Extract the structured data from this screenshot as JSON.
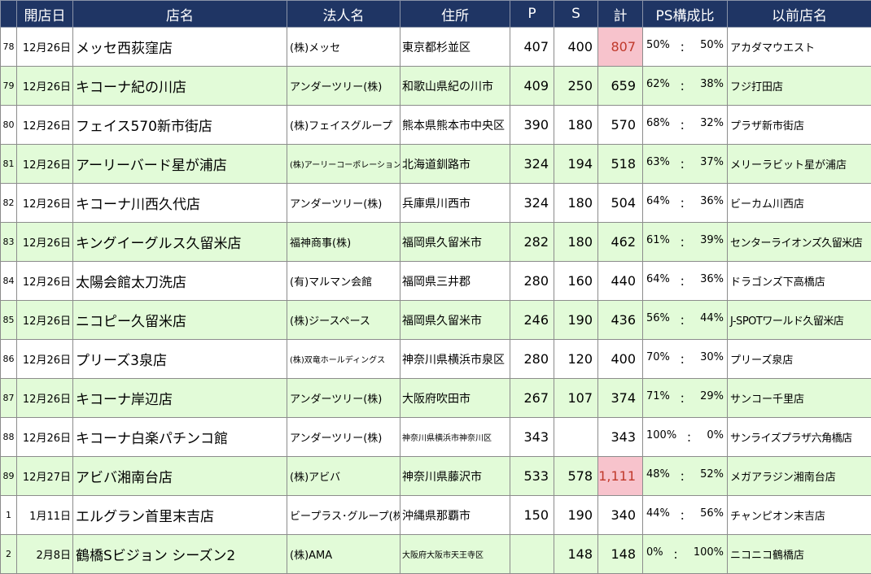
{
  "headers": {
    "no": "",
    "date": "開店日",
    "store": "店名",
    "corp": "法人名",
    "addr": "住所",
    "p": "P",
    "s": "S",
    "total": "計",
    "ratio": "PS構成比",
    "prev": "以前店名"
  },
  "rows": [
    {
      "no": "78",
      "date": "12月26日",
      "store": "メッセ西荻窪店",
      "corp": "(株)メッセ",
      "addr": "東京都杉並区",
      "p": "407",
      "s": "400",
      "total": "807",
      "ratio_p": "50%",
      "sep": "：",
      "ratio_s": "50%",
      "prev": "アカダマウエスト",
      "highlight": true
    },
    {
      "no": "79",
      "date": "12月26日",
      "store": "キコーナ紀の川店",
      "corp": "アンダーツリー(株)",
      "addr": "和歌山県紀の川市",
      "p": "409",
      "s": "250",
      "total": "659",
      "ratio_p": "62%",
      "sep": "：",
      "ratio_s": "38%",
      "prev": "フジ打田店",
      "highlight": false
    },
    {
      "no": "80",
      "date": "12月26日",
      "store": "フェイス570新市街店",
      "corp": "(株)フェイスグループ",
      "addr": "熊本県熊本市中央区",
      "p": "390",
      "s": "180",
      "total": "570",
      "ratio_p": "68%",
      "sep": "：",
      "ratio_s": "32%",
      "prev": "プラザ新市街店",
      "highlight": false
    },
    {
      "no": "81",
      "date": "12月26日",
      "store": "アーリーバード星が浦店",
      "corp": "(株)アーリーコーポレーション",
      "addr": "北海道釧路市",
      "p": "324",
      "s": "194",
      "total": "518",
      "ratio_p": "63%",
      "sep": "：",
      "ratio_s": "37%",
      "prev": "メリーラビット星が浦店",
      "highlight": false
    },
    {
      "no": "82",
      "date": "12月26日",
      "store": "キコーナ川西久代店",
      "corp": "アンダーツリー(株)",
      "addr": "兵庫県川西市",
      "p": "324",
      "s": "180",
      "total": "504",
      "ratio_p": "64%",
      "sep": "：",
      "ratio_s": "36%",
      "prev": "ビーカム川西店",
      "highlight": false
    },
    {
      "no": "83",
      "date": "12月26日",
      "store": "キングイーグルス久留米店",
      "corp": "福神商事(株)",
      "addr": "福岡県久留米市",
      "p": "282",
      "s": "180",
      "total": "462",
      "ratio_p": "61%",
      "sep": "：",
      "ratio_s": "39%",
      "prev": "センターライオンズ久留米店",
      "highlight": false
    },
    {
      "no": "84",
      "date": "12月26日",
      "store": "太陽会館太刀洗店",
      "corp": "(有)マルマン会館",
      "addr": "福岡県三井郡",
      "p": "280",
      "s": "160",
      "total": "440",
      "ratio_p": "64%",
      "sep": "：",
      "ratio_s": "36%",
      "prev": "ドラゴンズ下高橋店",
      "highlight": false
    },
    {
      "no": "85",
      "date": "12月26日",
      "store": "ニコピー久留米店",
      "corp": "(株)ジースペース",
      "addr": "福岡県久留米市",
      "p": "246",
      "s": "190",
      "total": "436",
      "ratio_p": "56%",
      "sep": "：",
      "ratio_s": "44%",
      "prev": "J-SPOTワールド久留米店",
      "highlight": false
    },
    {
      "no": "86",
      "date": "12月26日",
      "store": "プリーズ3泉店",
      "corp": "(株)双竜ホールディングス",
      "addr": "神奈川県横浜市泉区",
      "p": "280",
      "s": "120",
      "total": "400",
      "ratio_p": "70%",
      "sep": "：",
      "ratio_s": "30%",
      "prev": "プリーズ泉店",
      "highlight": false
    },
    {
      "no": "87",
      "date": "12月26日",
      "store": "キコーナ岸辺店",
      "corp": "アンダーツリー(株)",
      "addr": "大阪府吹田市",
      "p": "267",
      "s": "107",
      "total": "374",
      "ratio_p": "71%",
      "sep": "：",
      "ratio_s": "29%",
      "prev": "サンコー千里店",
      "highlight": false
    },
    {
      "no": "88",
      "date": "12月26日",
      "store": "キコーナ白楽パチンコ館",
      "corp": "アンダーツリー(株)",
      "addr": "神奈川県横浜市神奈川区",
      "p": "343",
      "s": "",
      "total": "343",
      "ratio_p": "100%",
      "sep": "：",
      "ratio_s": "0%",
      "prev": "サンライズプラザ六角橋店",
      "highlight": false
    },
    {
      "no": "89",
      "date": "12月27日",
      "store": "アビバ湘南台店",
      "corp": "(株)アビバ",
      "addr": "神奈川県藤沢市",
      "p": "533",
      "s": "578",
      "total": "1,111",
      "ratio_p": "48%",
      "sep": "：",
      "ratio_s": "52%",
      "prev": "メガアラジン湘南台店",
      "highlight": true
    },
    {
      "no": "1",
      "date": "1月11日",
      "store": "エルグラン首里末吉店",
      "corp": "ビープラス･グループ(株)",
      "addr": "沖縄県那覇市",
      "p": "150",
      "s": "190",
      "total": "340",
      "ratio_p": "44%",
      "sep": "：",
      "ratio_s": "56%",
      "prev": "チャンピオン末吉店",
      "highlight": false
    },
    {
      "no": "2",
      "date": "2月8日",
      "store": "鶴橋Sビジョン シーズン2",
      "corp": "(株)AMA",
      "addr": "大阪府大阪市天王寺区",
      "p": "",
      "s": "148",
      "total": "148",
      "ratio_p": "0%",
      "sep": "：",
      "ratio_s": "100%",
      "prev": "ニコニコ鶴橋店",
      "highlight": false
    }
  ]
}
